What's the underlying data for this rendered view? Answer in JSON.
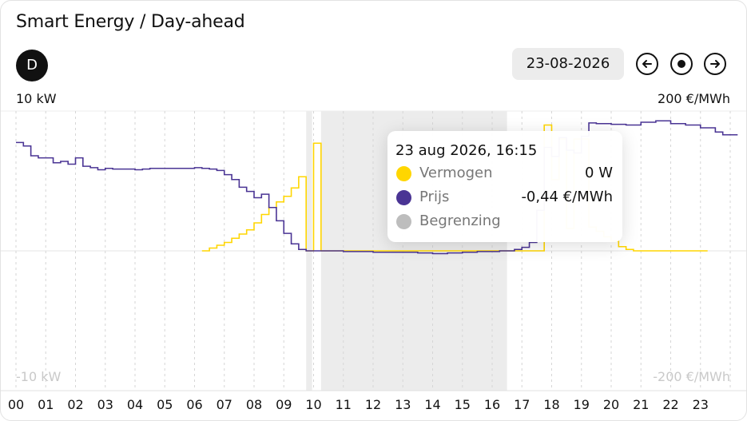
{
  "header": {
    "title": "Smart Energy / Day-ahead",
    "avatar_letter": "D"
  },
  "controls": {
    "date": "23-08-2026",
    "prev_icon": "arrow-left-icon",
    "today_icon": "record-dot-icon",
    "next_icon": "arrow-right-icon"
  },
  "axes": {
    "left_top": "10 kW",
    "left_bottom": "-10 kW",
    "right_top": "200 €/MWh",
    "right_bottom": "-200 €/MWh"
  },
  "tooltip": {
    "title": "23 aug 2026, 16:15",
    "rows": [
      {
        "label": "Vermogen",
        "value": "0 W",
        "color": "#FFD600"
      },
      {
        "label": "Prijs",
        "value": "-0,44 €/MWh",
        "color": "#4A3494"
      },
      {
        "label": "Begrenzing",
        "value": "",
        "color": "#BDBDBD"
      }
    ]
  },
  "chart_data": {
    "type": "line",
    "x_labels": [
      "00",
      "01",
      "02",
      "03",
      "04",
      "05",
      "06",
      "07",
      "08",
      "09",
      "10",
      "11",
      "12",
      "13",
      "14",
      "15",
      "16",
      "17",
      "18",
      "19",
      "20",
      "21",
      "22",
      "23"
    ],
    "x_unit": "hour",
    "y_left": {
      "label_top": "10 kW",
      "label_bottom": "-10 kW",
      "range": [
        -10,
        10
      ],
      "unit": "kW"
    },
    "y_right": {
      "label_top": "200 €/MWh",
      "label_bottom": "-200 €/MWh",
      "range": [
        -200,
        200
      ],
      "unit": "€/MWh"
    },
    "grid": "vertical dashed per hour, horizontal at 0",
    "curtailment_periods": [
      [
        9.75,
        9.95
      ],
      [
        10.25,
        16.5
      ]
    ],
    "series": [
      {
        "name": "Vermogen",
        "axis": "left",
        "color": "#FFD600",
        "step_points": [
          [
            6.25,
            0.0
          ],
          [
            6.5,
            0.2
          ],
          [
            6.75,
            0.4
          ],
          [
            7.0,
            0.6
          ],
          [
            7.25,
            0.9
          ],
          [
            7.5,
            1.2
          ],
          [
            7.75,
            1.5
          ],
          [
            8.0,
            2.0
          ],
          [
            8.25,
            2.6
          ],
          [
            8.5,
            3.1
          ],
          [
            8.75,
            3.5
          ],
          [
            9.0,
            3.9
          ],
          [
            9.25,
            4.5
          ],
          [
            9.5,
            5.3
          ],
          [
            9.75,
            0.0
          ],
          [
            10.0,
            7.7
          ],
          [
            10.25,
            0.0
          ],
          [
            16.5,
            0.0
          ],
          [
            16.6,
            0.0
          ],
          [
            17.75,
            9.0
          ],
          [
            18.0,
            5.1
          ],
          [
            18.25,
            8.0
          ],
          [
            18.5,
            1.6
          ],
          [
            18.75,
            8.0
          ],
          [
            19.25,
            1.7
          ],
          [
            19.5,
            1.4
          ],
          [
            19.75,
            1.0
          ],
          [
            20.0,
            0.7
          ],
          [
            20.25,
            0.3
          ],
          [
            20.5,
            0.1
          ],
          [
            20.75,
            0.0
          ],
          [
            22.99,
            0.0
          ]
        ]
      },
      {
        "name": "Prijs",
        "axis": "right",
        "color": "#4A3494",
        "step_points": [
          [
            0.0,
            155
          ],
          [
            0.25,
            150
          ],
          [
            0.5,
            136
          ],
          [
            0.75,
            133
          ],
          [
            1.0,
            133
          ],
          [
            1.25,
            126
          ],
          [
            1.5,
            128
          ],
          [
            1.75,
            124
          ],
          [
            2.0,
            133
          ],
          [
            2.25,
            121
          ],
          [
            2.5,
            119
          ],
          [
            2.75,
            116
          ],
          [
            3.0,
            118
          ],
          [
            3.25,
            117
          ],
          [
            3.5,
            117
          ],
          [
            3.75,
            117
          ],
          [
            4.0,
            116
          ],
          [
            4.25,
            117
          ],
          [
            4.5,
            118
          ],
          [
            4.75,
            118
          ],
          [
            5.0,
            118
          ],
          [
            5.25,
            118
          ],
          [
            5.5,
            118
          ],
          [
            5.75,
            118
          ],
          [
            6.0,
            119
          ],
          [
            6.25,
            118
          ],
          [
            6.5,
            117
          ],
          [
            6.75,
            115
          ],
          [
            7.0,
            109
          ],
          [
            7.25,
            102
          ],
          [
            7.5,
            91
          ],
          [
            7.75,
            85
          ],
          [
            8.0,
            76
          ],
          [
            8.25,
            81
          ],
          [
            8.5,
            62
          ],
          [
            8.75,
            43
          ],
          [
            9.0,
            25
          ],
          [
            9.25,
            10
          ],
          [
            9.5,
            2
          ],
          [
            9.75,
            0
          ],
          [
            10.0,
            0
          ],
          [
            11.0,
            -1
          ],
          [
            12.0,
            -2
          ],
          [
            12.5,
            -2
          ],
          [
            13.0,
            -2
          ],
          [
            13.5,
            -3
          ],
          [
            14.0,
            -4
          ],
          [
            14.5,
            -3
          ],
          [
            15.0,
            -2
          ],
          [
            15.5,
            -1
          ],
          [
            16.0,
            -1
          ],
          [
            16.25,
            0
          ],
          [
            16.5,
            0
          ],
          [
            16.75,
            2
          ],
          [
            17.0,
            5
          ],
          [
            17.25,
            12
          ],
          [
            17.5,
            58
          ],
          [
            17.75,
            148
          ],
          [
            18.0,
            135
          ],
          [
            18.25,
            162
          ],
          [
            18.5,
            144
          ],
          [
            18.75,
            140
          ],
          [
            19.0,
            164
          ],
          [
            19.25,
            183
          ],
          [
            19.5,
            182
          ],
          [
            19.75,
            182
          ],
          [
            20.0,
            181
          ],
          [
            20.5,
            180
          ],
          [
            21.0,
            184
          ],
          [
            21.5,
            186
          ],
          [
            22.0,
            182
          ],
          [
            22.5,
            180
          ],
          [
            23.0,
            176
          ],
          [
            23.5,
            170
          ],
          [
            23.75,
            166
          ],
          [
            24.0,
            166
          ]
        ]
      }
    ]
  }
}
